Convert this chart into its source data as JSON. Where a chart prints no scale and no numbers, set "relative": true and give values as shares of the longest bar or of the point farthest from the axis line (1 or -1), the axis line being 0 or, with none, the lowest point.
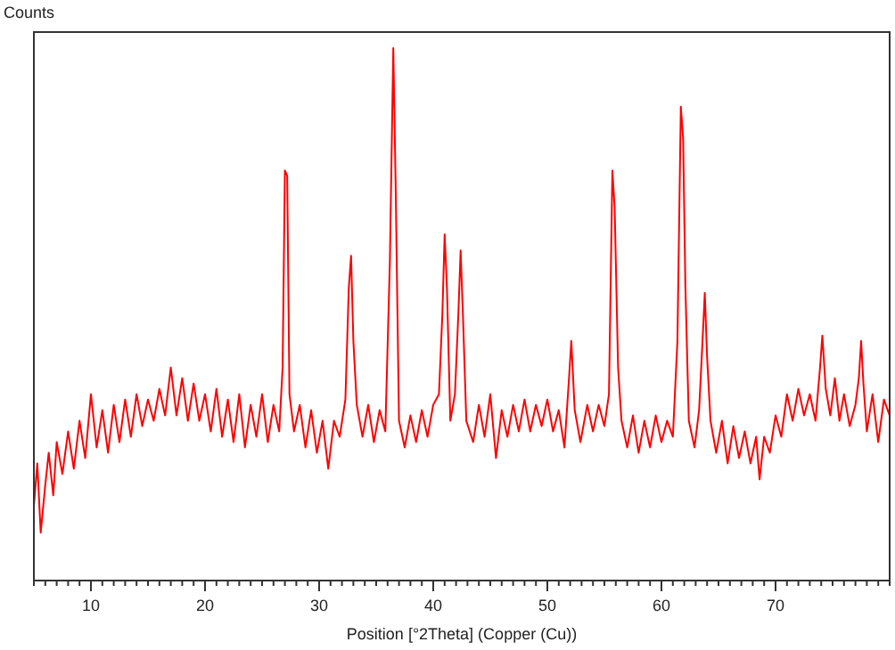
{
  "chart_data": {
    "type": "line",
    "relative": true,
    "ylabel": "Counts",
    "xlabel": "Position [°2Theta] (Copper (Cu))",
    "xlim": [
      5,
      80
    ],
    "xticks": [
      10,
      20,
      30,
      40,
      50,
      60,
      70
    ],
    "grid": false,
    "marker": "none",
    "line_style": "solid",
    "series": [
      {
        "color": "#ff0000",
        "x": [
          5.0,
          5.3,
          5.6,
          6.0,
          6.3,
          6.7,
          7.0,
          7.5,
          8.0,
          8.5,
          9.0,
          9.5,
          10.0,
          10.5,
          11.0,
          11.5,
          12.0,
          12.5,
          13.0,
          13.5,
          14.0,
          14.5,
          15.0,
          15.5,
          16.0,
          16.5,
          17.0,
          17.5,
          18.0,
          18.5,
          19.0,
          19.5,
          20.0,
          20.5,
          21.0,
          21.5,
          22.0,
          22.5,
          23.0,
          23.5,
          24.0,
          24.5,
          25.0,
          25.5,
          26.0,
          26.5,
          26.8,
          27.0,
          27.2,
          27.4,
          27.8,
          28.3,
          28.8,
          29.3,
          29.8,
          30.3,
          30.8,
          31.3,
          31.8,
          32.3,
          32.6,
          32.8,
          33.0,
          33.3,
          33.8,
          34.3,
          34.8,
          35.3,
          35.8,
          36.2,
          36.5,
          36.7,
          37.0,
          37.5,
          38.0,
          38.5,
          39.0,
          39.5,
          40.0,
          40.5,
          40.8,
          41.0,
          41.2,
          41.5,
          41.9,
          42.2,
          42.4,
          42.6,
          42.9,
          43.5,
          44.0,
          44.5,
          45.0,
          45.5,
          46.0,
          46.5,
          47.0,
          47.5,
          48.0,
          48.5,
          49.0,
          49.5,
          50.0,
          50.5,
          51.0,
          51.5,
          51.9,
          52.1,
          52.4,
          52.9,
          53.5,
          54.0,
          54.5,
          55.0,
          55.4,
          55.7,
          55.9,
          56.2,
          56.5,
          57.0,
          57.5,
          58.0,
          58.5,
          59.0,
          59.5,
          60.0,
          60.5,
          61.0,
          61.4,
          61.7,
          61.9,
          62.1,
          62.4,
          62.9,
          63.3,
          63.6,
          63.8,
          64.0,
          64.3,
          64.8,
          65.3,
          65.8,
          66.3,
          66.8,
          67.3,
          67.8,
          68.3,
          68.6,
          69.0,
          69.5,
          70.0,
          70.5,
          71.0,
          71.5,
          72.0,
          72.5,
          73.0,
          73.5,
          73.9,
          74.1,
          74.4,
          74.8,
          75.2,
          75.6,
          76.0,
          76.5,
          77.0,
          77.3,
          77.5,
          77.7,
          78.0,
          78.5,
          79.0,
          79.5,
          80.0
        ],
        "values": [
          0.14,
          0.22,
          0.09,
          0.18,
          0.24,
          0.16,
          0.26,
          0.2,
          0.28,
          0.21,
          0.3,
          0.23,
          0.35,
          0.25,
          0.32,
          0.24,
          0.33,
          0.26,
          0.34,
          0.27,
          0.35,
          0.29,
          0.34,
          0.3,
          0.36,
          0.31,
          0.4,
          0.31,
          0.38,
          0.3,
          0.37,
          0.3,
          0.35,
          0.28,
          0.36,
          0.27,
          0.34,
          0.26,
          0.35,
          0.25,
          0.33,
          0.27,
          0.35,
          0.26,
          0.33,
          0.28,
          0.4,
          0.77,
          0.76,
          0.35,
          0.28,
          0.33,
          0.25,
          0.32,
          0.24,
          0.3,
          0.21,
          0.3,
          0.27,
          0.34,
          0.55,
          0.61,
          0.45,
          0.33,
          0.27,
          0.33,
          0.26,
          0.32,
          0.28,
          0.6,
          1.0,
          0.75,
          0.3,
          0.25,
          0.31,
          0.26,
          0.32,
          0.27,
          0.33,
          0.35,
          0.5,
          0.65,
          0.55,
          0.3,
          0.35,
          0.5,
          0.62,
          0.5,
          0.3,
          0.26,
          0.33,
          0.27,
          0.35,
          0.23,
          0.32,
          0.27,
          0.33,
          0.28,
          0.34,
          0.28,
          0.33,
          0.29,
          0.34,
          0.28,
          0.32,
          0.25,
          0.38,
          0.45,
          0.32,
          0.26,
          0.33,
          0.28,
          0.33,
          0.29,
          0.35,
          0.77,
          0.7,
          0.4,
          0.3,
          0.25,
          0.31,
          0.24,
          0.3,
          0.25,
          0.31,
          0.26,
          0.3,
          0.27,
          0.45,
          0.89,
          0.83,
          0.55,
          0.3,
          0.25,
          0.32,
          0.45,
          0.54,
          0.42,
          0.3,
          0.24,
          0.3,
          0.22,
          0.29,
          0.23,
          0.28,
          0.22,
          0.27,
          0.19,
          0.27,
          0.24,
          0.31,
          0.27,
          0.35,
          0.3,
          0.36,
          0.31,
          0.35,
          0.3,
          0.4,
          0.46,
          0.36,
          0.31,
          0.38,
          0.3,
          0.35,
          0.29,
          0.33,
          0.38,
          0.45,
          0.37,
          0.28,
          0.35,
          0.26,
          0.34,
          0.31
        ]
      }
    ]
  }
}
